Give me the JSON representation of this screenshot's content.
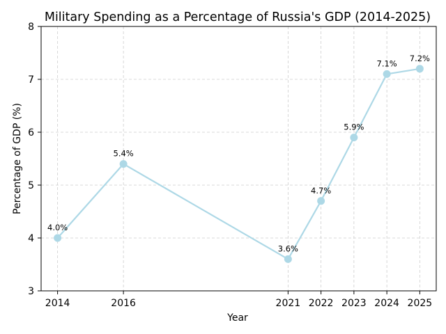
{
  "chart_data": {
    "type": "line",
    "title": "Military Spending as a Percentage of Russia's GDP (2014-2025)",
    "xlabel": "Year",
    "ylabel": "Percentage of GDP (%)",
    "x": [
      2014,
      2016,
      2021,
      2022,
      2023,
      2024,
      2025
    ],
    "x_tick_labels": [
      "2014",
      "2016",
      "2021",
      "2022",
      "2023",
      "2024",
      "2025"
    ],
    "xlim": [
      2013.5,
      2025.5
    ],
    "ylim": [
      3,
      8
    ],
    "y_ticks": [
      3,
      4,
      5,
      6,
      7,
      8
    ],
    "y_tick_labels": [
      "3",
      "4",
      "5",
      "6",
      "7",
      "8"
    ],
    "grid": true,
    "series": [
      {
        "values": [
          4.0,
          5.4,
          3.6,
          4.7,
          5.9,
          7.1,
          7.2
        ],
        "data_labels": [
          "4.0%",
          "5.4%",
          "3.6%",
          "4.7%",
          "5.9%",
          "7.1%",
          "7.2%"
        ],
        "color": "#add8e6"
      }
    ]
  }
}
